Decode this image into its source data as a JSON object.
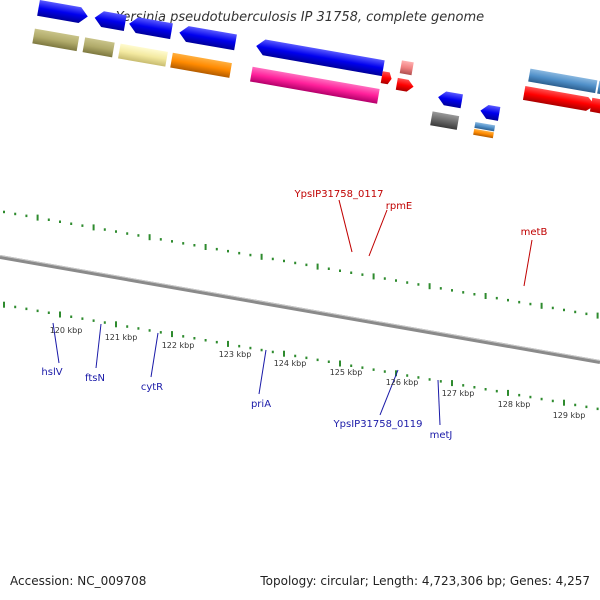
{
  "title": "Yersinia pseudotuberculosis IP 31758, complete genome",
  "accession_text": "Accession: NC_009708",
  "summary_text": "Topology: circular; Length: 4,723,306 bp; Genes: 4,257",
  "colors": {
    "backbone": "#8a8a8a",
    "tick": "#2e8b2e",
    "label_blue": "#1a1aa8",
    "label_red": "#c00000"
  },
  "tick_labels": [
    "120 kbp",
    "121 kbp",
    "122 kbp",
    "123 kbp",
    "124 kbp",
    "125 kbp",
    "126 kbp",
    "127 kbp",
    "128 kbp",
    "129 kbp"
  ],
  "gene_labels": {
    "hslV": "hslV",
    "ftsN": "ftsN",
    "cytR": "cytR",
    "priA": "priA",
    "ypsIP_0119": "YpsIP31758_0119",
    "metJ": "metJ",
    "ypsIP_0117": "YpsIP31758_0117",
    "rpmE": "rpmE",
    "metB": "metB"
  }
}
